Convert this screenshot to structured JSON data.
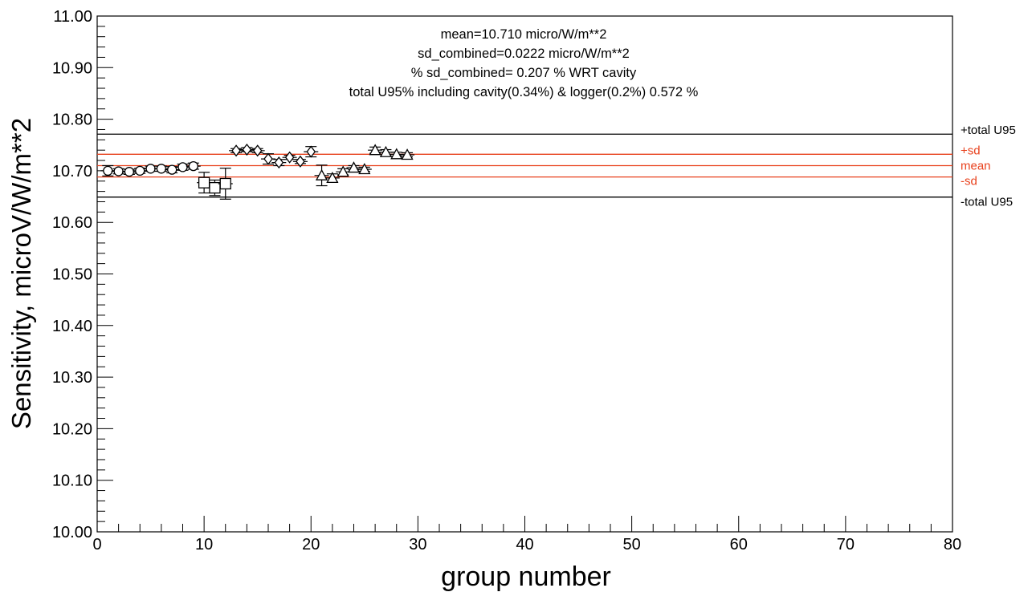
{
  "chart_data": {
    "type": "scatter",
    "title": "",
    "xlabel": "group number",
    "ylabel": "Sensitivity, microV/W/m**2",
    "xlim": [
      0,
      80
    ],
    "ylim": [
      10.0,
      11.0
    ],
    "x_ticks": [
      "0",
      "10",
      "20",
      "30",
      "40",
      "50",
      "60",
      "70",
      "80"
    ],
    "y_ticks": [
      "10.00",
      "10.10",
      "10.20",
      "10.30",
      "10.40",
      "10.50",
      "10.60",
      "10.70",
      "10.80",
      "10.90",
      "11.00"
    ],
    "grid": false,
    "annotations": [
      "mean=10.710 micro/W/m**2",
      "sd_combined=0.0222 micro/W/m**2",
      "% sd_combined= 0.207 % WRT cavity",
      "total U95% including cavity(0.34%) & logger(0.2%) 0.572 %"
    ],
    "reference_lines": [
      {
        "label": "+total U95",
        "y": 10.771,
        "color": "#000000"
      },
      {
        "label": "+sd",
        "y": 10.732,
        "color": "#e8401c"
      },
      {
        "label": "mean",
        "y": 10.71,
        "color": "#e8401c"
      },
      {
        "label": "-sd",
        "y": 10.688,
        "color": "#e8401c"
      },
      {
        "label": "-total U95",
        "y": 10.649,
        "color": "#000000"
      }
    ],
    "series": [
      {
        "marker": "circle",
        "x": [
          1,
          2,
          3,
          4,
          5,
          6,
          7,
          8,
          9
        ],
        "y": [
          10.7,
          10.699,
          10.698,
          10.7,
          10.704,
          10.704,
          10.702,
          10.707,
          10.709
        ],
        "err": [
          0.01,
          0.005,
          0.005,
          0.005,
          0.005,
          0.005,
          0.006,
          0.006,
          0.006
        ]
      },
      {
        "marker": "square",
        "x": [
          10,
          11,
          12
        ],
        "y": [
          10.677,
          10.667,
          10.675
        ],
        "err": [
          0.02,
          0.015,
          0.03
        ]
      },
      {
        "marker": "diamond",
        "x": [
          13,
          14,
          15,
          16,
          17,
          18,
          19,
          20
        ],
        "y": [
          10.739,
          10.741,
          10.739,
          10.723,
          10.716,
          10.726,
          10.718,
          10.737
        ],
        "err": [
          0.004,
          0.004,
          0.004,
          0.01,
          0.006,
          0.004,
          0.004,
          0.01
        ]
      },
      {
        "marker": "triangle",
        "x": [
          21,
          22,
          23,
          24,
          25,
          26,
          27,
          28,
          29
        ],
        "y": [
          10.691,
          10.686,
          10.698,
          10.706,
          10.703,
          10.74,
          10.736,
          10.732,
          10.731
        ],
        "err": [
          0.02,
          0.008,
          0.006,
          0.004,
          0.004,
          0.006,
          0.005,
          0.004,
          0.004
        ]
      }
    ]
  }
}
